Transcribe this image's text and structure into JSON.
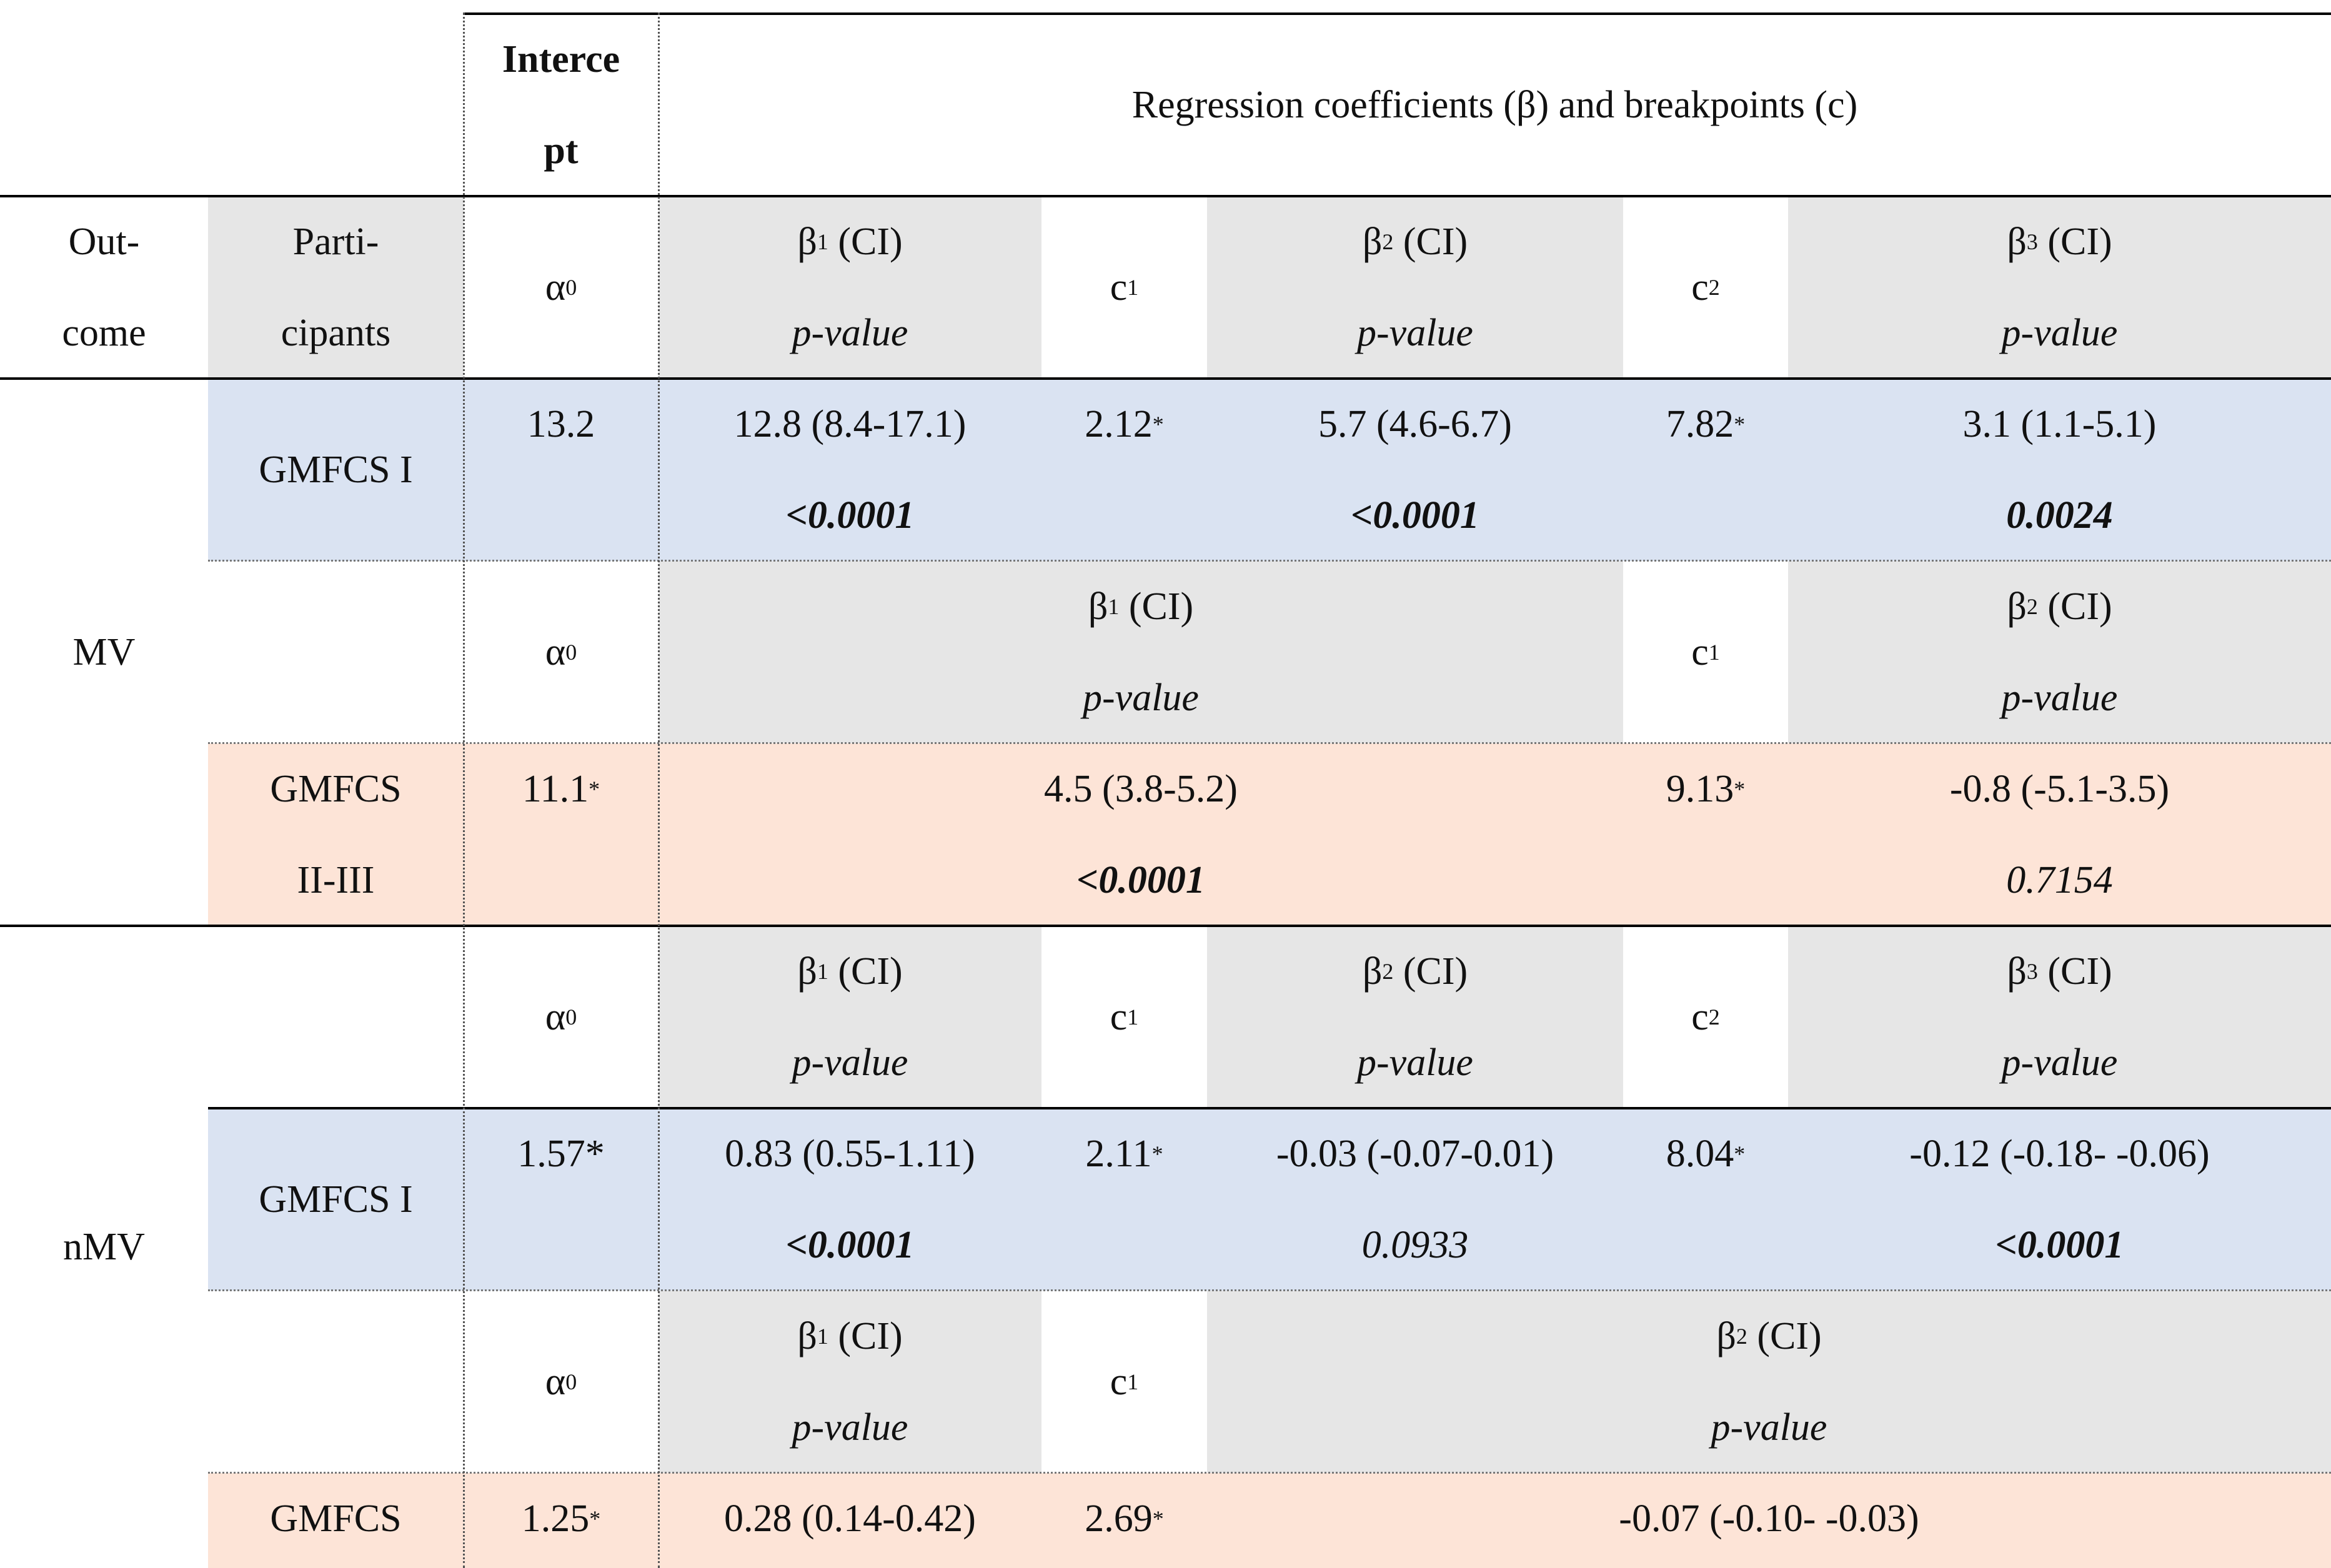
{
  "header": {
    "intercept_line1": "Interce",
    "intercept_line2": "pt",
    "regression_title": "Regression coefficients (β) and breakpoints (c)"
  },
  "col_header": {
    "outcome_line1": "Out-",
    "outcome_line2": "come",
    "participants_line1": "Parti-",
    "participants_line2": "cipants"
  },
  "symbols": {
    "alpha": "α",
    "alpha_sub": "0",
    "beta": "β",
    "ci": "(CI)",
    "b1": "1",
    "b2": "2",
    "b3": "3",
    "c": "c",
    "c1": "1",
    "c2": "2",
    "pvalue": "p-value",
    "star": "*"
  },
  "outcomes": {
    "mv": "MV",
    "nmv": "nMV"
  },
  "groups": {
    "gmfcs_i": "GMFCS I",
    "gmfcs_line1": "GMFCS",
    "gmfcs_line2": "II-III"
  },
  "mv_gmfcs_i": {
    "alpha0": "13.2",
    "b1_ci": "12.8 (8.4-17.1)",
    "b1_p": "<0.0001",
    "c1": "2.12",
    "b2_ci": "5.7 (4.6-6.7)",
    "b2_p": "<0.0001",
    "c2": "7.82",
    "b3_ci": "3.1 (1.1-5.1)",
    "b3_p": "0.0024"
  },
  "mv_gmfcs_ii_iii": {
    "alpha0": "11.1",
    "b1_ci": "4.5 (3.8-5.2)",
    "b1_p": "<0.0001",
    "c1": "9.13",
    "b2_ci": "-0.8 (-5.1-3.5)",
    "b2_p": "0.7154"
  },
  "nmv_gmfcs_i": {
    "alpha0": "1.57*",
    "b1_ci": "0.83 (0.55-1.11)",
    "b1_p": "<0.0001",
    "c1": "2.11",
    "b2_ci": "-0.03 (-0.07-0.01)",
    "b2_p": "0.0933",
    "c2": "8.04",
    "b3_ci": "-0.12 (-0.18- -0.06)",
    "b3_p": "<0.0001"
  },
  "nmv_gmfcs_ii_iii": {
    "alpha0": "1.25",
    "b1_ci": "0.28 (0.14-0.42)",
    "c1": "2.69",
    "b2_ci": "-0.07 (-0.10- -0.03)"
  },
  "colors": {
    "grey": "#e6e6e6",
    "blue": "#dae3f2",
    "peach": "#fde4d7"
  }
}
